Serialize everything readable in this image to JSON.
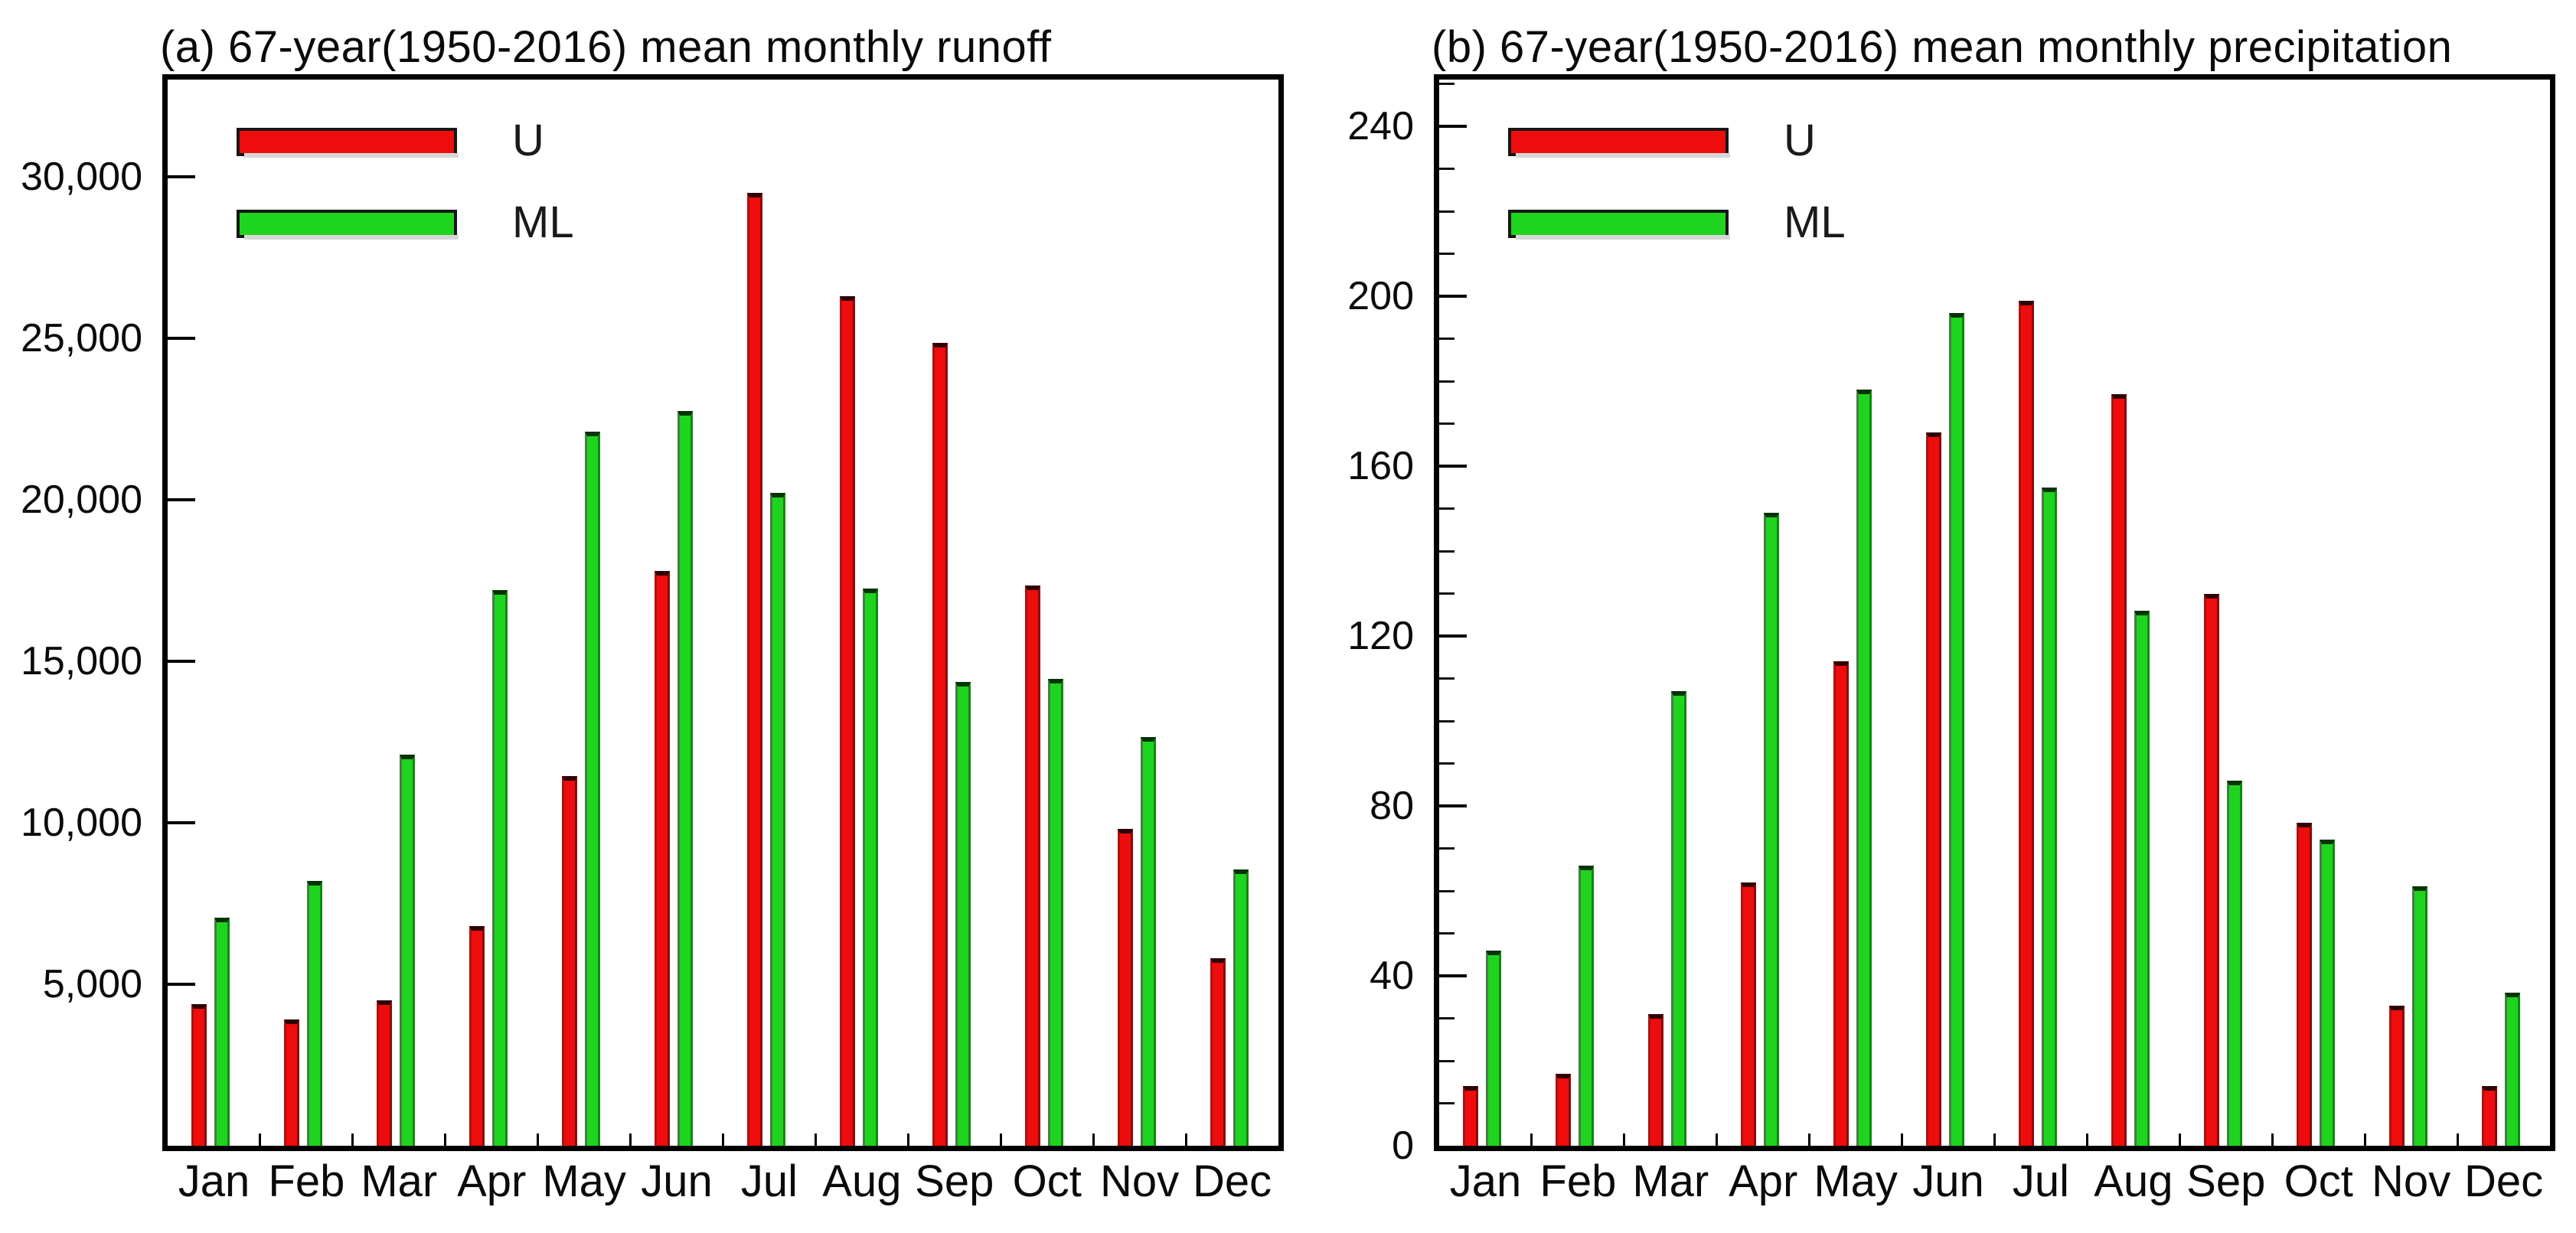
{
  "figure": {
    "background": "#ffffff",
    "axis_color": "#000000",
    "shadow_color": "#cfcfcf"
  },
  "chart_data": [
    {
      "id": "a",
      "type": "bar",
      "title": "(a) 67-year(1950-2016) mean monthly runoff",
      "categories": [
        "Jan",
        "Feb",
        "Mar",
        "Apr",
        "May",
        "Jun",
        "Jul",
        "Aug",
        "Sep",
        "Oct",
        "Nov",
        "Dec"
      ],
      "series": [
        {
          "name": "U",
          "color": "#ee0c0c",
          "edge_left": "#a81414",
          "edge_right": "#8f0808",
          "cap": "#2e0202",
          "highlight": "#f6b7a4",
          "values": [
            4380,
            3920,
            4490,
            6800,
            11450,
            17800,
            29500,
            26300,
            24850,
            17350,
            9800,
            5800
          ]
        },
        {
          "name": "ML",
          "color": "#1fd41f",
          "edge_left": "#4a7a4a",
          "edge_right": "#0c8c0c",
          "cap": "#053305",
          "highlight": "#bdeeb0",
          "values": [
            7050,
            8200,
            12100,
            17200,
            22100,
            22750,
            20200,
            17250,
            14350,
            14450,
            12650,
            8550
          ]
        }
      ],
      "ylim": [
        0,
        33000
      ],
      "yticks": [
        {
          "v": 5000,
          "label": "5,000"
        },
        {
          "v": 10000,
          "label": "10,000"
        },
        {
          "v": 15000,
          "label": "15,000"
        },
        {
          "v": 20000,
          "label": "20,000"
        },
        {
          "v": 25000,
          "label": "25,000"
        },
        {
          "v": 30000,
          "label": "30,000"
        }
      ],
      "minor_tick_step": null,
      "grid": false,
      "legend_position": "top-left",
      "xlabel": "",
      "ylabel": ""
    },
    {
      "id": "b",
      "type": "bar",
      "title": "(b) 67-year(1950-2016) mean monthly precipitation",
      "categories": [
        "Jan",
        "Feb",
        "Mar",
        "Apr",
        "May",
        "Jun",
        "Jul",
        "Aug",
        "Sep",
        "Oct",
        "Nov",
        "Dec"
      ],
      "series": [
        {
          "name": "U",
          "color": "#ee0c0c",
          "edge_left": "#a81414",
          "edge_right": "#8f0808",
          "cap": "#2e0202",
          "highlight": "#f6b7a4",
          "values": [
            14,
            17,
            31,
            62,
            114,
            168,
            199,
            177,
            130,
            76,
            33,
            14
          ]
        },
        {
          "name": "ML",
          "color": "#1fd41f",
          "edge_left": "#4a7a4a",
          "edge_right": "#0c8c0c",
          "cap": "#053305",
          "highlight": "#bdeeb0",
          "values": [
            46,
            66,
            107,
            149,
            178,
            196,
            155,
            126,
            86,
            72,
            61,
            36
          ]
        }
      ],
      "ylim": [
        0,
        251
      ],
      "yticks": [
        {
          "v": 0,
          "label": "0"
        },
        {
          "v": 40,
          "label": "40"
        },
        {
          "v": 80,
          "label": "80"
        },
        {
          "v": 120,
          "label": "120"
        },
        {
          "v": 160,
          "label": "160"
        },
        {
          "v": 200,
          "label": "200"
        },
        {
          "v": 240,
          "label": "240"
        }
      ],
      "minor_tick_step": 10,
      "grid": false,
      "legend_position": "top-left",
      "xlabel": "",
      "ylabel": ""
    }
  ]
}
